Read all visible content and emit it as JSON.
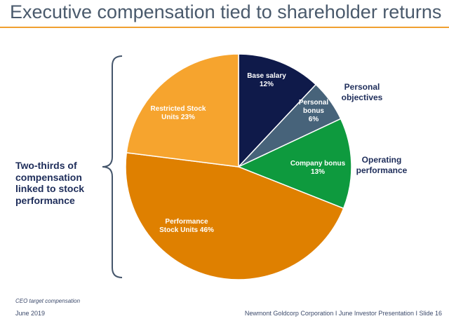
{
  "title": "Executive compensation tied to shareholder returns",
  "left_note": [
    "Two-thirds of",
    "compensation",
    "linked to stock",
    "performance"
  ],
  "footnote": "CEO target compensation",
  "footer": {
    "date": "June 2019",
    "source": "Newmont Goldcorp Corporation  I  June Investor Presentation  I  Slide 16"
  },
  "chart_data": {
    "type": "pie",
    "title": "",
    "start": "12 o'clock",
    "direction": "clockwise",
    "slices": [
      {
        "label": "Base salary",
        "value": 12,
        "color": "#0f1a4a",
        "inner": [
          "Base salary",
          "12%"
        ],
        "outer": []
      },
      {
        "label": "Personal bonus",
        "value": 6,
        "color": "#47637a",
        "inner": [
          "Personal",
          "bonus",
          "6%"
        ],
        "outer": [
          "Personal",
          "objectives"
        ]
      },
      {
        "label": "Company bonus",
        "value": 13,
        "color": "#0e9a3e",
        "inner": [
          "Company bonus",
          "13%"
        ],
        "outer": [
          "Operating",
          "performance"
        ]
      },
      {
        "label": "Performance Stock Units",
        "value": 46,
        "color": "#df8000",
        "inner": [
          "Performance",
          "Stock Units 46%"
        ],
        "outer": []
      },
      {
        "label": "Restricted Stock Units",
        "value": 23,
        "color": "#f6a42e",
        "inner": [
          "Restricted Stock",
          "Units 23%"
        ],
        "outer": []
      }
    ]
  }
}
